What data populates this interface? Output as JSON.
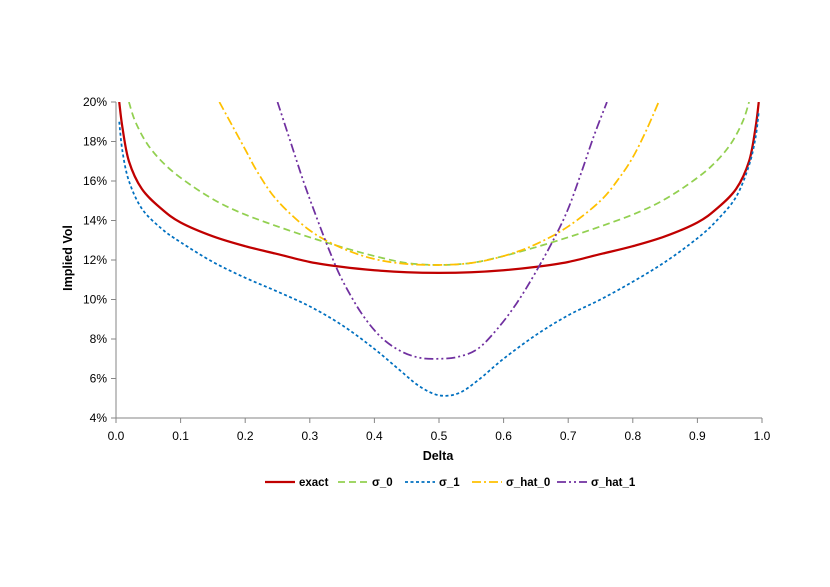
{
  "chart_data": {
    "type": "line",
    "title": "",
    "xlabel": "Delta",
    "ylabel": "Implied Vol",
    "xlim": [
      0.0,
      1.0
    ],
    "ylim": [
      0.04,
      0.2
    ],
    "x_ticks": [
      0.0,
      0.1,
      0.2,
      0.3,
      0.4,
      0.5,
      0.6,
      0.7,
      0.8,
      0.9,
      1.0
    ],
    "x_tick_labels": [
      "0.0",
      "0.1",
      "0.2",
      "0.3",
      "0.4",
      "0.5",
      "0.6",
      "0.7",
      "0.8",
      "0.9",
      "1.0"
    ],
    "y_ticks": [
      0.04,
      0.06,
      0.08,
      0.1,
      0.12,
      0.14,
      0.16,
      0.18,
      0.2
    ],
    "y_tick_labels": [
      "4%",
      "6%",
      "8%",
      "10%",
      "12%",
      "14%",
      "16%",
      "18%",
      "20%"
    ],
    "grid": false,
    "legend_position": "bottom",
    "series": [
      {
        "name": "exact",
        "color": "#c00000",
        "style": "solid",
        "points": [
          [
            0.005,
            0.2
          ],
          [
            0.01,
            0.187
          ],
          [
            0.02,
            0.17
          ],
          [
            0.04,
            0.156
          ],
          [
            0.07,
            0.146
          ],
          [
            0.1,
            0.139
          ],
          [
            0.15,
            0.132
          ],
          [
            0.2,
            0.127
          ],
          [
            0.25,
            0.123
          ],
          [
            0.3,
            0.119
          ],
          [
            0.35,
            0.1165
          ],
          [
            0.4,
            0.1148
          ],
          [
            0.45,
            0.1138
          ],
          [
            0.5,
            0.1135
          ],
          [
            0.55,
            0.1138
          ],
          [
            0.6,
            0.1148
          ],
          [
            0.65,
            0.1165
          ],
          [
            0.7,
            0.119
          ],
          [
            0.75,
            0.123
          ],
          [
            0.8,
            0.127
          ],
          [
            0.85,
            0.132
          ],
          [
            0.9,
            0.139
          ],
          [
            0.93,
            0.146
          ],
          [
            0.96,
            0.156
          ],
          [
            0.98,
            0.17
          ],
          [
            0.99,
            0.187
          ],
          [
            0.995,
            0.2
          ]
        ]
      },
      {
        "name": "σ_0",
        "color": "#92d050",
        "style": "dash",
        "points": [
          [
            0.02,
            0.2
          ],
          [
            0.03,
            0.19
          ],
          [
            0.05,
            0.178
          ],
          [
            0.08,
            0.167
          ],
          [
            0.12,
            0.157
          ],
          [
            0.16,
            0.149
          ],
          [
            0.2,
            0.143
          ],
          [
            0.25,
            0.137
          ],
          [
            0.3,
            0.1315
          ],
          [
            0.35,
            0.1265
          ],
          [
            0.4,
            0.122
          ],
          [
            0.45,
            0.1185
          ],
          [
            0.5,
            0.1175
          ],
          [
            0.55,
            0.1185
          ],
          [
            0.6,
            0.122
          ],
          [
            0.65,
            0.1265
          ],
          [
            0.7,
            0.1315
          ],
          [
            0.75,
            0.137
          ],
          [
            0.8,
            0.143
          ],
          [
            0.84,
            0.149
          ],
          [
            0.88,
            0.157
          ],
          [
            0.92,
            0.167
          ],
          [
            0.95,
            0.178
          ],
          [
            0.97,
            0.19
          ],
          [
            0.98,
            0.2
          ]
        ]
      },
      {
        "name": "σ_1",
        "color": "#0070c0",
        "style": "shortdash",
        "points": [
          [
            0.005,
            0.19
          ],
          [
            0.01,
            0.175
          ],
          [
            0.02,
            0.16
          ],
          [
            0.04,
            0.146
          ],
          [
            0.07,
            0.136
          ],
          [
            0.1,
            0.129
          ],
          [
            0.15,
            0.119
          ],
          [
            0.2,
            0.111
          ],
          [
            0.25,
            0.104
          ],
          [
            0.3,
            0.0965
          ],
          [
            0.35,
            0.087
          ],
          [
            0.4,
            0.075
          ],
          [
            0.44,
            0.064
          ],
          [
            0.47,
            0.056
          ],
          [
            0.5,
            0.0515
          ],
          [
            0.53,
            0.0525
          ],
          [
            0.56,
            0.059
          ],
          [
            0.6,
            0.07
          ],
          [
            0.65,
            0.082
          ],
          [
            0.7,
            0.092
          ],
          [
            0.75,
            0.1
          ],
          [
            0.8,
            0.109
          ],
          [
            0.85,
            0.119
          ],
          [
            0.9,
            0.131
          ],
          [
            0.93,
            0.14
          ],
          [
            0.96,
            0.152
          ],
          [
            0.98,
            0.168
          ],
          [
            0.99,
            0.182
          ],
          [
            0.995,
            0.195
          ]
        ]
      },
      {
        "name": "σ_hat_0",
        "color": "#ffc000",
        "style": "dashdot",
        "points": [
          [
            0.16,
            0.2
          ],
          [
            0.18,
            0.188
          ],
          [
            0.2,
            0.176
          ],
          [
            0.22,
            0.164
          ],
          [
            0.25,
            0.15
          ],
          [
            0.3,
            0.135
          ],
          [
            0.35,
            0.126
          ],
          [
            0.4,
            0.1205
          ],
          [
            0.45,
            0.118
          ],
          [
            0.5,
            0.1175
          ],
          [
            0.55,
            0.1185
          ],
          [
            0.6,
            0.122
          ],
          [
            0.65,
            0.128
          ],
          [
            0.7,
            0.137
          ],
          [
            0.75,
            0.15
          ],
          [
            0.78,
            0.162
          ],
          [
            0.8,
            0.172
          ],
          [
            0.82,
            0.185
          ],
          [
            0.84,
            0.2
          ]
        ]
      },
      {
        "name": "σ_hat_1",
        "color": "#7030a0",
        "style": "dashdotdot",
        "points": [
          [
            0.25,
            0.2
          ],
          [
            0.27,
            0.18
          ],
          [
            0.29,
            0.16
          ],
          [
            0.31,
            0.142
          ],
          [
            0.33,
            0.125
          ],
          [
            0.35,
            0.11
          ],
          [
            0.38,
            0.093
          ],
          [
            0.41,
            0.081
          ],
          [
            0.44,
            0.074
          ],
          [
            0.47,
            0.0705
          ],
          [
            0.5,
            0.07
          ],
          [
            0.53,
            0.071
          ],
          [
            0.56,
            0.075
          ],
          [
            0.59,
            0.085
          ],
          [
            0.62,
            0.098
          ],
          [
            0.65,
            0.114
          ],
          [
            0.68,
            0.132
          ],
          [
            0.7,
            0.146
          ],
          [
            0.72,
            0.164
          ],
          [
            0.74,
            0.183
          ],
          [
            0.76,
            0.2
          ]
        ]
      }
    ]
  }
}
